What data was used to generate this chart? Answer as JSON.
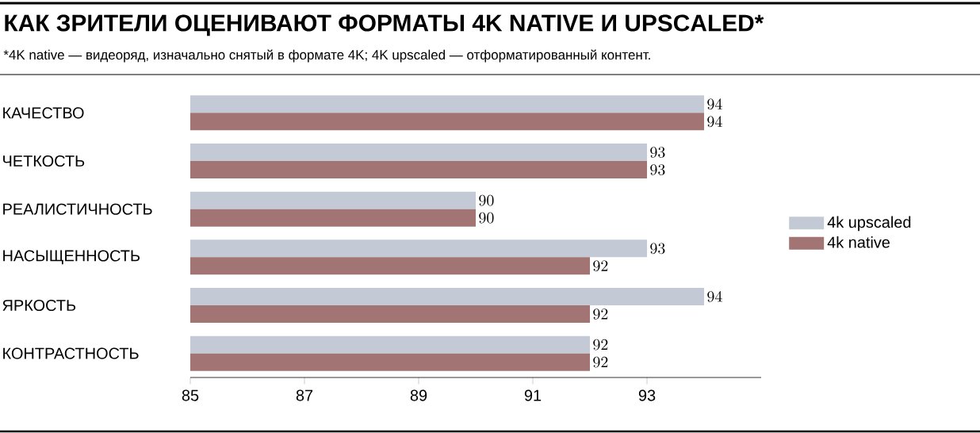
{
  "chart_data": {
    "type": "bar",
    "orientation": "horizontal",
    "title": "КАК ЗРИТЕЛИ ОЦЕНИВАЮТ ФОРМАТЫ 4K NATIVE И UPSCALED*",
    "subtitle": "*4K native — видеоряд, изначально снятый в формате 4K; 4K upscaled — отформатированный контент.",
    "categories": [
      "КАЧЕСТВО",
      "ЧЕТКОСТЬ",
      "РЕАЛИСТИЧНОСТЬ",
      "НАСЫЩЕННОСТЬ",
      "ЯРКОСТЬ",
      "КОНТРАСТНОСТЬ"
    ],
    "series": [
      {
        "name": "4k upscaled",
        "color": "#c3cad6",
        "values": [
          94,
          93,
          90,
          93,
          94,
          92
        ]
      },
      {
        "name": "4k native",
        "color": "#a27474",
        "values": [
          94,
          93,
          90,
          92,
          92,
          92
        ]
      }
    ],
    "xlim": [
      85,
      95
    ],
    "xticks": [
      85,
      87,
      89,
      91,
      93
    ],
    "data_labels": true,
    "legend": "right",
    "grid": false
  }
}
